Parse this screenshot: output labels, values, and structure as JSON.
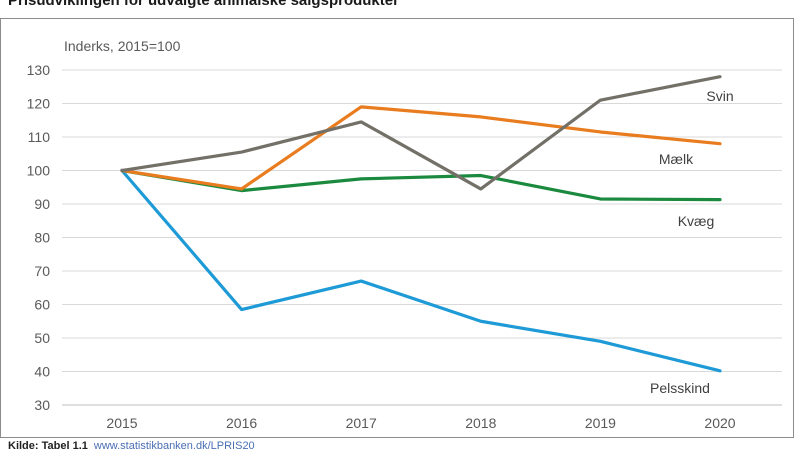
{
  "chart_data": {
    "type": "line",
    "title": "Prisudviklingen for udvalgte animalske salgsprodukter",
    "ylabel": "Inderks, 2015=100",
    "xlabel": "",
    "categories": [
      "2015",
      "2016",
      "2017",
      "2018",
      "2019",
      "2020"
    ],
    "ylim": [
      30,
      130
    ],
    "yticks": [
      30,
      40,
      50,
      60,
      70,
      80,
      90,
      100,
      110,
      120,
      130
    ],
    "grid": true,
    "series": [
      {
        "name": "Svin",
        "color": "#737068",
        "values": [
          100,
          105.5,
          114.5,
          94.5,
          121,
          128
        ]
      },
      {
        "name": "Mælk",
        "color": "#e87c1e",
        "values": [
          100,
          94.5,
          119,
          116,
          111.5,
          108
        ]
      },
      {
        "name": "Kvæg",
        "color": "#1b8a3e",
        "values": [
          100,
          94,
          97.5,
          98.5,
          91.5,
          91.3
        ]
      },
      {
        "name": "Pelsskind",
        "color": "#1e9ad6",
        "values": [
          100,
          58.5,
          67,
          55,
          49,
          40.2
        ]
      }
    ]
  },
  "source": {
    "label": "Kilde: Tabel 1.1",
    "link": "www.statistikbanken.dk/LPRIS20"
  }
}
